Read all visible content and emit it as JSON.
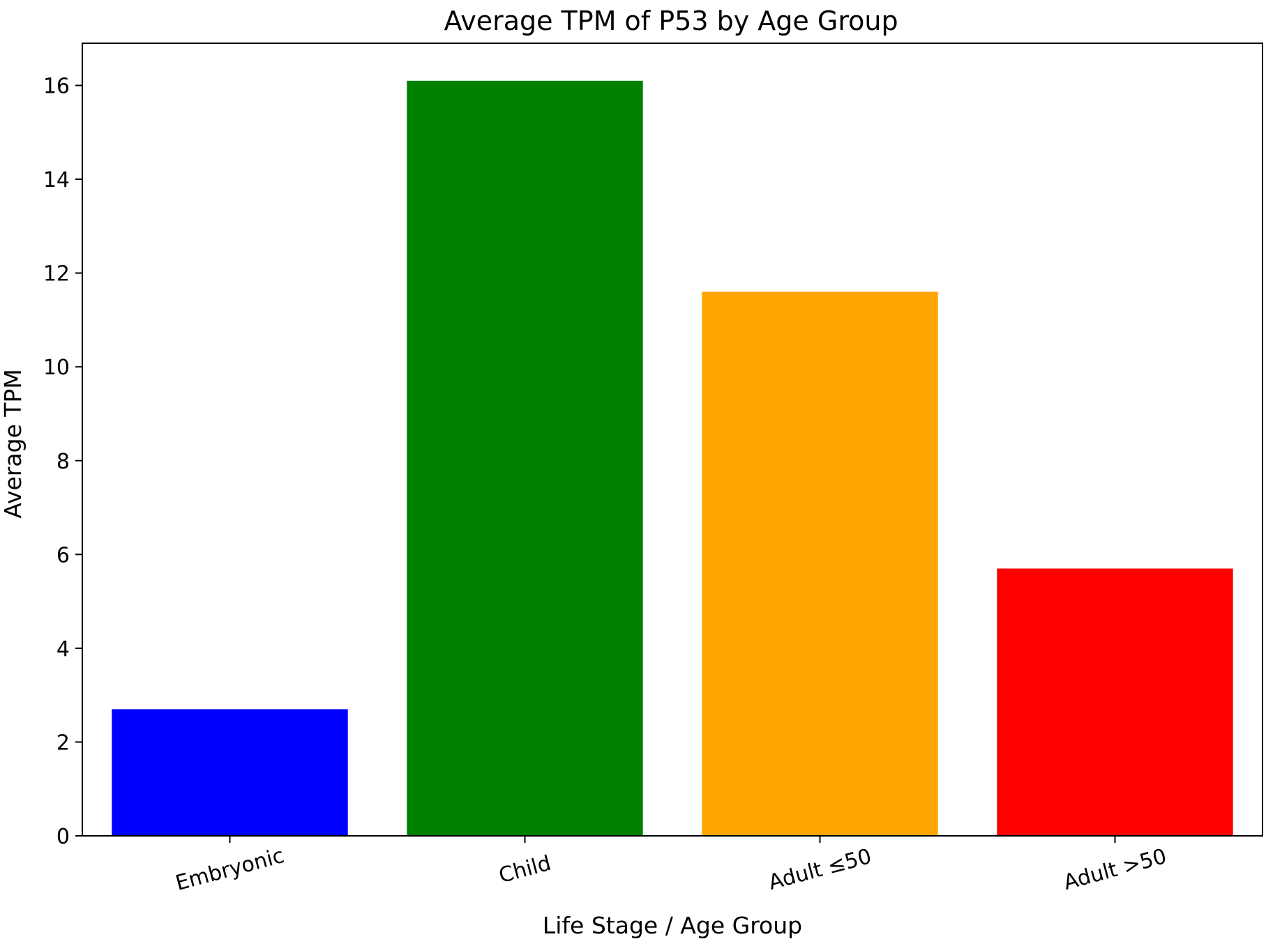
{
  "chart_data": {
    "type": "bar",
    "title": "Average TPM of P53 by Age Group",
    "xlabel": "Life Stage / Age Group",
    "ylabel": "Average TPM",
    "categories": [
      "Embryonic",
      "Child",
      "Adult ≤50",
      "Adult >50"
    ],
    "values": [
      2.7,
      16.1,
      11.6,
      5.7
    ],
    "colors": [
      "#0000ff",
      "#008000",
      "#ffa500",
      "#ff0000"
    ],
    "ylim": [
      0,
      16.9
    ],
    "yticks": [
      0,
      2,
      4,
      6,
      8,
      10,
      12,
      14,
      16
    ],
    "xtick_rotation_deg": 15,
    "grid": false,
    "legend": "none"
  }
}
